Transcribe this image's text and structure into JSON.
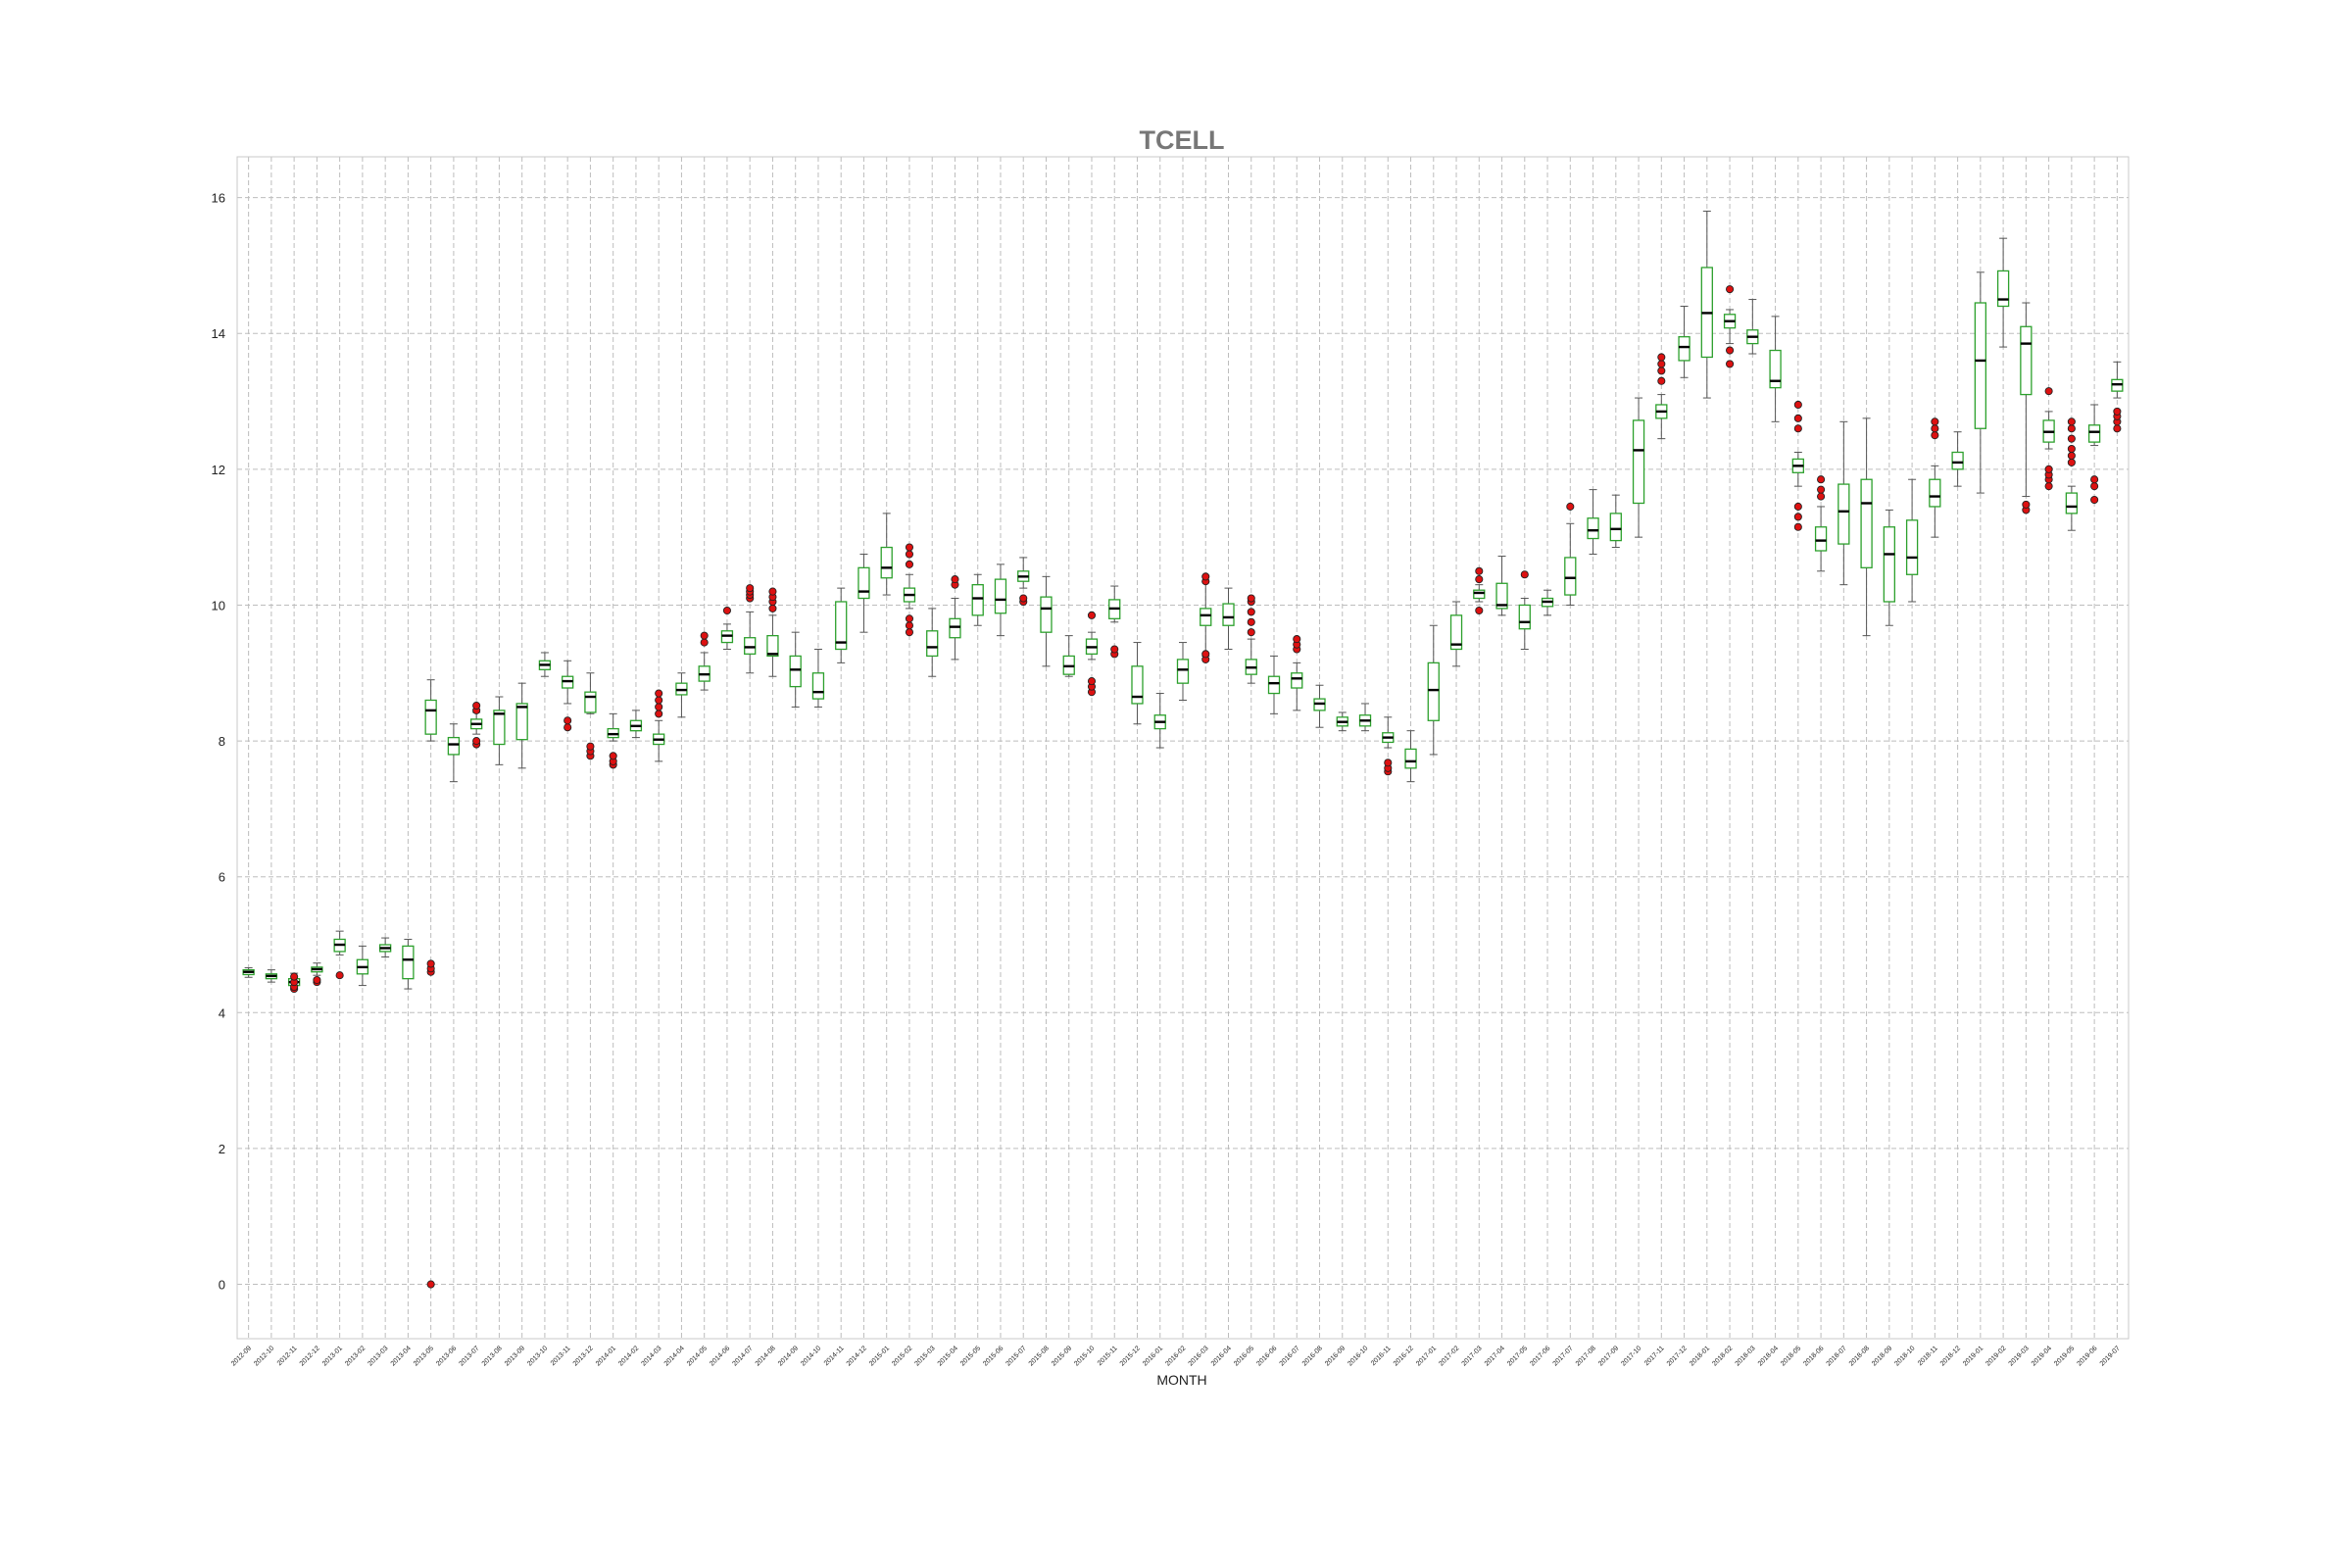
{
  "chart_data": {
    "type": "boxplot",
    "title": "TCELL",
    "xlabel": "MONTH",
    "ylabel": "",
    "ylim": [
      -0.8,
      16.6
    ],
    "yticks": [
      0,
      2,
      4,
      6,
      8,
      10,
      12,
      14,
      16
    ],
    "grid": true,
    "colors": {
      "box": "#2ca02c",
      "median": "#000000",
      "whisker": "#555555",
      "outlier_fill": "#dd1111",
      "outlier_edge": "#222222",
      "title": "#777777"
    },
    "categories": [
      "2012-09",
      "2012-10",
      "2012-11",
      "2012-12",
      "2013-01",
      "2013-02",
      "2013-03",
      "2013-04",
      "2013-05",
      "2013-06",
      "2013-07",
      "2013-08",
      "2013-09",
      "2013-10",
      "2013-11",
      "2013-12",
      "2014-01",
      "2014-02",
      "2014-03",
      "2014-04",
      "2014-05",
      "2014-06",
      "2014-07",
      "2014-08",
      "2014-09",
      "2014-10",
      "2014-11",
      "2014-12",
      "2015-01",
      "2015-02",
      "2015-03",
      "2015-04",
      "2015-05",
      "2015-06",
      "2015-07",
      "2015-08",
      "2015-09",
      "2015-10",
      "2015-11",
      "2015-12",
      "2016-01",
      "2016-02",
      "2016-03",
      "2016-04",
      "2016-05",
      "2016-06",
      "2016-07",
      "2016-08",
      "2016-09",
      "2016-10",
      "2016-11",
      "2016-12",
      "2017-01",
      "2017-02",
      "2017-03",
      "2017-04",
      "2017-05",
      "2017-06",
      "2017-07",
      "2017-08",
      "2017-09",
      "2017-10",
      "2017-11",
      "2017-12",
      "2018-01",
      "2018-02",
      "2018-03",
      "2018-04",
      "2018-05",
      "2018-06",
      "2018-07",
      "2018-08",
      "2018-09",
      "2018-10",
      "2018-11",
      "2018-12",
      "2019-01",
      "2019-02",
      "2019-03",
      "2019-04",
      "2019-05",
      "2019-06",
      "2019-07"
    ],
    "boxes": [
      {
        "whislo": 4.52,
        "q1": 4.56,
        "med": 4.6,
        "q3": 4.63,
        "whishi": 4.66,
        "fliers": []
      },
      {
        "whislo": 4.45,
        "q1": 4.5,
        "med": 4.54,
        "q3": 4.57,
        "whishi": 4.63,
        "fliers": []
      },
      {
        "whislo": 4.35,
        "q1": 4.4,
        "med": 4.45,
        "q3": 4.5,
        "whishi": 4.58,
        "fliers": [
          4.35,
          4.38,
          4.45,
          4.53
        ]
      },
      {
        "whislo": 4.55,
        "q1": 4.6,
        "med": 4.64,
        "q3": 4.67,
        "whishi": 4.73,
        "fliers": [
          4.45,
          4.48
        ]
      },
      {
        "whislo": 4.85,
        "q1": 4.9,
        "med": 5.0,
        "q3": 5.08,
        "whishi": 5.2,
        "fliers": [
          4.55
        ]
      },
      {
        "whislo": 4.4,
        "q1": 4.57,
        "med": 4.67,
        "q3": 4.78,
        "whishi": 4.98,
        "fliers": []
      },
      {
        "whislo": 4.82,
        "q1": 4.9,
        "med": 4.95,
        "q3": 5.0,
        "whishi": 5.1,
        "fliers": []
      },
      {
        "whislo": 4.35,
        "q1": 4.5,
        "med": 4.78,
        "q3": 4.98,
        "whishi": 5.08,
        "fliers": []
      },
      {
        "whislo": 8.0,
        "q1": 8.1,
        "med": 8.45,
        "q3": 8.6,
        "whishi": 8.9,
        "fliers": [
          4.6,
          4.65,
          4.72,
          0.0
        ]
      },
      {
        "whislo": 7.4,
        "q1": 7.8,
        "med": 7.95,
        "q3": 8.05,
        "whishi": 8.25,
        "fliers": []
      },
      {
        "whislo": 8.1,
        "q1": 8.18,
        "med": 8.25,
        "q3": 8.32,
        "whishi": 8.42,
        "fliers": [
          7.95,
          8.0,
          8.45,
          8.52
        ]
      },
      {
        "whislo": 7.65,
        "q1": 7.95,
        "med": 8.4,
        "q3": 8.45,
        "whishi": 8.65,
        "fliers": []
      },
      {
        "whislo": 7.6,
        "q1": 8.02,
        "med": 8.5,
        "q3": 8.55,
        "whishi": 8.85,
        "fliers": []
      },
      {
        "whislo": 8.95,
        "q1": 9.05,
        "med": 9.12,
        "q3": 9.18,
        "whishi": 9.3,
        "fliers": []
      },
      {
        "whislo": 8.55,
        "q1": 8.78,
        "med": 8.88,
        "q3": 8.95,
        "whishi": 9.18,
        "fliers": [
          8.2,
          8.3
        ]
      },
      {
        "whislo": 8.4,
        "q1": 8.42,
        "med": 8.65,
        "q3": 8.72,
        "whishi": 9.0,
        "fliers": [
          7.78,
          7.85,
          7.92
        ]
      },
      {
        "whislo": 8.0,
        "q1": 8.05,
        "med": 8.1,
        "q3": 8.18,
        "whishi": 8.4,
        "fliers": [
          7.65,
          7.7,
          7.78
        ]
      },
      {
        "whislo": 8.05,
        "q1": 8.15,
        "med": 8.22,
        "q3": 8.3,
        "whishi": 8.45,
        "fliers": []
      },
      {
        "whislo": 7.7,
        "q1": 7.95,
        "med": 8.02,
        "q3": 8.1,
        "whishi": 8.3,
        "fliers": [
          8.4,
          8.5,
          8.6,
          8.7
        ]
      },
      {
        "whislo": 8.35,
        "q1": 8.68,
        "med": 8.75,
        "q3": 8.85,
        "whishi": 9.0,
        "fliers": []
      },
      {
        "whislo": 8.75,
        "q1": 8.88,
        "med": 8.98,
        "q3": 9.1,
        "whishi": 9.3,
        "fliers": [
          9.45,
          9.55
        ]
      },
      {
        "whislo": 9.35,
        "q1": 9.45,
        "med": 9.55,
        "q3": 9.62,
        "whishi": 9.72,
        "fliers": [
          9.92
        ]
      },
      {
        "whislo": 9.0,
        "q1": 9.28,
        "med": 9.38,
        "q3": 9.52,
        "whishi": 9.9,
        "fliers": [
          10.1,
          10.15,
          10.2,
          10.25
        ]
      },
      {
        "whislo": 8.95,
        "q1": 9.25,
        "med": 9.28,
        "q3": 9.55,
        "whishi": 9.85,
        "fliers": [
          9.95,
          10.05,
          10.12,
          10.2
        ]
      },
      {
        "whislo": 8.5,
        "q1": 8.8,
        "med": 9.05,
        "q3": 9.25,
        "whishi": 9.6,
        "fliers": []
      },
      {
        "whislo": 8.5,
        "q1": 8.62,
        "med": 8.72,
        "q3": 9.0,
        "whishi": 9.35,
        "fliers": []
      },
      {
        "whislo": 9.15,
        "q1": 9.35,
        "med": 9.45,
        "q3": 10.05,
        "whishi": 10.25,
        "fliers": []
      },
      {
        "whislo": 9.6,
        "q1": 10.1,
        "med": 10.2,
        "q3": 10.55,
        "whishi": 10.75,
        "fliers": []
      },
      {
        "whislo": 10.15,
        "q1": 10.4,
        "med": 10.55,
        "q3": 10.85,
        "whishi": 11.35,
        "fliers": []
      },
      {
        "whislo": 9.95,
        "q1": 10.05,
        "med": 10.15,
        "q3": 10.25,
        "whishi": 10.45,
        "fliers": [
          9.6,
          9.7,
          9.8,
          10.6,
          10.75,
          10.85
        ]
      },
      {
        "whislo": 8.95,
        "q1": 9.25,
        "med": 9.38,
        "q3": 9.62,
        "whishi": 9.95,
        "fliers": []
      },
      {
        "whislo": 9.2,
        "q1": 9.52,
        "med": 9.68,
        "q3": 9.8,
        "whishi": 10.1,
        "fliers": [
          10.3,
          10.38
        ]
      },
      {
        "whislo": 9.7,
        "q1": 9.85,
        "med": 10.1,
        "q3": 10.3,
        "whishi": 10.45,
        "fliers": []
      },
      {
        "whislo": 9.55,
        "q1": 9.88,
        "med": 10.08,
        "q3": 10.38,
        "whishi": 10.6,
        "fliers": []
      },
      {
        "whislo": 10.25,
        "q1": 10.35,
        "med": 10.42,
        "q3": 10.5,
        "whishi": 10.7,
        "fliers": [
          10.05,
          10.1
        ]
      },
      {
        "whislo": 9.1,
        "q1": 9.6,
        "med": 9.95,
        "q3": 10.12,
        "whishi": 10.42,
        "fliers": []
      },
      {
        "whislo": 8.95,
        "q1": 8.98,
        "med": 9.1,
        "q3": 9.25,
        "whishi": 9.55,
        "fliers": []
      },
      {
        "whislo": 9.2,
        "q1": 9.28,
        "med": 9.38,
        "q3": 9.5,
        "whishi": 9.6,
        "fliers": [
          8.72,
          8.8,
          8.88,
          9.85
        ]
      },
      {
        "whislo": 9.75,
        "q1": 9.8,
        "med": 9.95,
        "q3": 10.08,
        "whishi": 10.28,
        "fliers": [
          9.28,
          9.35
        ]
      },
      {
        "whislo": 8.25,
        "q1": 8.55,
        "med": 8.65,
        "q3": 9.1,
        "whishi": 9.45,
        "fliers": []
      },
      {
        "whislo": 7.9,
        "q1": 8.18,
        "med": 8.28,
        "q3": 8.38,
        "whishi": 8.7,
        "fliers": []
      },
      {
        "whislo": 8.6,
        "q1": 8.85,
        "med": 9.05,
        "q3": 9.2,
        "whishi": 9.45,
        "fliers": []
      },
      {
        "whislo": 9.25,
        "q1": 9.7,
        "med": 9.85,
        "q3": 9.95,
        "whishi": 10.35,
        "fliers": [
          9.2,
          9.28,
          10.35,
          10.42
        ]
      },
      {
        "whislo": 9.35,
        "q1": 9.7,
        "med": 9.82,
        "q3": 10.02,
        "whishi": 10.25,
        "fliers": []
      },
      {
        "whislo": 8.85,
        "q1": 8.98,
        "med": 9.08,
        "q3": 9.2,
        "whishi": 9.5,
        "fliers": [
          9.6,
          9.75,
          9.9,
          10.05,
          10.1
        ]
      },
      {
        "whislo": 8.4,
        "q1": 8.7,
        "med": 8.85,
        "q3": 8.95,
        "whishi": 9.25,
        "fliers": []
      },
      {
        "whislo": 8.45,
        "q1": 8.78,
        "med": 8.92,
        "q3": 9.0,
        "whishi": 9.15,
        "fliers": [
          9.35,
          9.42,
          9.5
        ]
      },
      {
        "whislo": 8.2,
        "q1": 8.45,
        "med": 8.55,
        "q3": 8.62,
        "whishi": 8.82,
        "fliers": []
      },
      {
        "whislo": 8.15,
        "q1": 8.22,
        "med": 8.28,
        "q3": 8.35,
        "whishi": 8.42,
        "fliers": []
      },
      {
        "whislo": 8.15,
        "q1": 8.22,
        "med": 8.3,
        "q3": 8.38,
        "whishi": 8.55,
        "fliers": []
      },
      {
        "whislo": 7.9,
        "q1": 7.98,
        "med": 8.05,
        "q3": 8.12,
        "whishi": 8.35,
        "fliers": [
          7.55,
          7.6,
          7.68
        ]
      },
      {
        "whislo": 7.4,
        "q1": 7.6,
        "med": 7.7,
        "q3": 7.88,
        "whishi": 8.15,
        "fliers": []
      },
      {
        "whislo": 7.8,
        "q1": 8.3,
        "med": 8.75,
        "q3": 9.15,
        "whishi": 9.7,
        "fliers": []
      },
      {
        "whislo": 9.1,
        "q1": 9.35,
        "med": 9.42,
        "q3": 9.85,
        "whishi": 10.05,
        "fliers": []
      },
      {
        "whislo": 10.05,
        "q1": 10.1,
        "med": 10.18,
        "q3": 10.22,
        "whishi": 10.3,
        "fliers": [
          9.92,
          10.38,
          10.5
        ]
      },
      {
        "whislo": 9.85,
        "q1": 9.95,
        "med": 10.0,
        "q3": 10.32,
        "whishi": 10.72,
        "fliers": []
      },
      {
        "whislo": 9.35,
        "q1": 9.65,
        "med": 9.75,
        "q3": 10.0,
        "whishi": 10.1,
        "fliers": [
          10.45
        ]
      },
      {
        "whislo": 9.85,
        "q1": 9.98,
        "med": 10.05,
        "q3": 10.1,
        "whishi": 10.22,
        "fliers": []
      },
      {
        "whislo": 10.0,
        "q1": 10.15,
        "med": 10.4,
        "q3": 10.7,
        "whishi": 11.2,
        "fliers": [
          11.45
        ]
      },
      {
        "whislo": 10.75,
        "q1": 10.98,
        "med": 11.1,
        "q3": 11.28,
        "whishi": 11.7,
        "fliers": []
      },
      {
        "whislo": 10.85,
        "q1": 10.95,
        "med": 11.12,
        "q3": 11.35,
        "whishi": 11.62,
        "fliers": []
      },
      {
        "whislo": 11.0,
        "q1": 11.5,
        "med": 12.28,
        "q3": 12.72,
        "whishi": 13.05,
        "fliers": []
      },
      {
        "whislo": 12.45,
        "q1": 12.75,
        "med": 12.85,
        "q3": 12.95,
        "whishi": 13.1,
        "fliers": [
          13.3,
          13.45,
          13.55,
          13.65
        ]
      },
      {
        "whislo": 13.35,
        "q1": 13.6,
        "med": 13.8,
        "q3": 13.95,
        "whishi": 14.4,
        "fliers": []
      },
      {
        "whislo": 13.05,
        "q1": 13.65,
        "med": 14.3,
        "q3": 14.97,
        "whishi": 15.8,
        "fliers": []
      },
      {
        "whislo": 13.85,
        "q1": 14.08,
        "med": 14.18,
        "q3": 14.28,
        "whishi": 14.35,
        "fliers": [
          13.55,
          13.75,
          14.65
        ]
      },
      {
        "whislo": 13.7,
        "q1": 13.85,
        "med": 13.95,
        "q3": 14.05,
        "whishi": 14.5,
        "fliers": []
      },
      {
        "whislo": 12.7,
        "q1": 13.2,
        "med": 13.3,
        "q3": 13.75,
        "whishi": 14.25,
        "fliers": []
      },
      {
        "whislo": 11.75,
        "q1": 11.95,
        "med": 12.05,
        "q3": 12.15,
        "whishi": 12.25,
        "fliers": [
          11.15,
          11.3,
          11.45,
          12.6,
          12.75,
          12.95
        ]
      },
      {
        "whislo": 10.5,
        "q1": 10.8,
        "med": 10.95,
        "q3": 11.15,
        "whishi": 11.45,
        "fliers": [
          11.6,
          11.7,
          11.85
        ]
      },
      {
        "whislo": 10.3,
        "q1": 10.9,
        "med": 11.38,
        "q3": 11.78,
        "whishi": 12.7,
        "fliers": []
      },
      {
        "whislo": 9.55,
        "q1": 10.55,
        "med": 11.5,
        "q3": 11.85,
        "whishi": 12.75,
        "fliers": []
      },
      {
        "whislo": 9.7,
        "q1": 10.05,
        "med": 10.75,
        "q3": 11.15,
        "whishi": 11.4,
        "fliers": []
      },
      {
        "whislo": 10.05,
        "q1": 10.45,
        "med": 10.7,
        "q3": 11.25,
        "whishi": 11.85,
        "fliers": []
      },
      {
        "whislo": 11.0,
        "q1": 11.45,
        "med": 11.6,
        "q3": 11.85,
        "whishi": 12.05,
        "fliers": [
          12.5,
          12.6,
          12.7
        ]
      },
      {
        "whislo": 11.75,
        "q1": 12.0,
        "med": 12.1,
        "q3": 12.25,
        "whishi": 12.55,
        "fliers": []
      },
      {
        "whislo": 11.65,
        "q1": 12.6,
        "med": 13.6,
        "q3": 14.45,
        "whishi": 14.9,
        "fliers": []
      },
      {
        "whislo": 13.8,
        "q1": 14.4,
        "med": 14.5,
        "q3": 14.92,
        "whishi": 15.4,
        "fliers": []
      },
      {
        "whislo": 11.6,
        "q1": 13.1,
        "med": 13.85,
        "q3": 14.1,
        "whishi": 14.45,
        "fliers": [
          11.4,
          11.48
        ]
      },
      {
        "whislo": 12.3,
        "q1": 12.4,
        "med": 12.55,
        "q3": 12.72,
        "whishi": 12.85,
        "fliers": [
          11.75,
          11.85,
          11.92,
          12.0,
          13.15
        ]
      },
      {
        "whislo": 11.1,
        "q1": 11.35,
        "med": 11.45,
        "q3": 11.65,
        "whishi": 11.75,
        "fliers": [
          12.1,
          12.2,
          12.3,
          12.45,
          12.6,
          12.7
        ]
      },
      {
        "whislo": 12.35,
        "q1": 12.4,
        "med": 12.55,
        "q3": 12.65,
        "whishi": 12.95,
        "fliers": [
          11.55,
          11.75,
          11.85
        ]
      },
      {
        "whislo": 13.05,
        "q1": 13.15,
        "med": 13.25,
        "q3": 13.32,
        "whishi": 13.58,
        "fliers": [
          12.6,
          12.7,
          12.78,
          12.85
        ]
      }
    ]
  }
}
